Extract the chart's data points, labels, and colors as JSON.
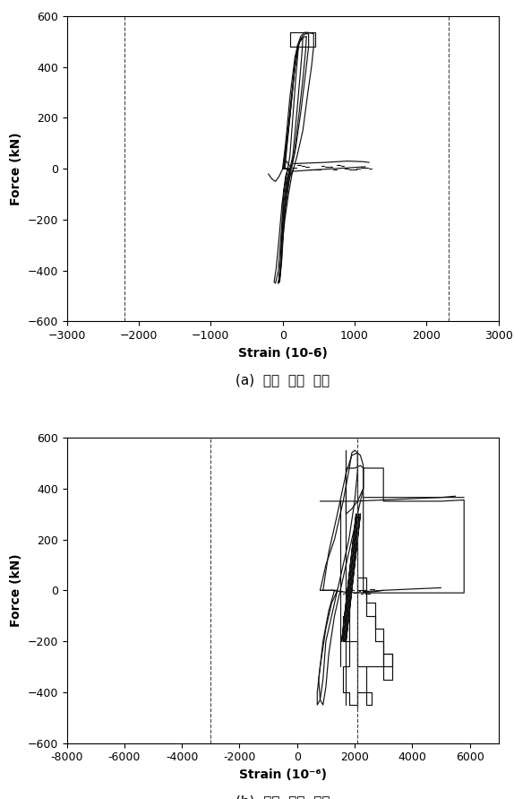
{
  "fig_width": 5.74,
  "fig_height": 8.91,
  "dpi": 100,
  "background_color": "#ffffff",
  "subplot_a": {
    "xlim": [
      -3000,
      3000
    ],
    "ylim": [
      -600,
      600
    ],
    "xticks": [
      -3000,
      -2000,
      -1000,
      0,
      1000,
      2000,
      3000
    ],
    "yticks": [
      -600,
      -400,
      -200,
      0,
      200,
      400,
      600
    ],
    "xlabel": "Strain (10-6)",
    "ylabel": "Force (kN)",
    "vlines": [
      -2200,
      2300
    ],
    "caption": "(a)  좌측  단부  주근"
  },
  "subplot_b": {
    "xlim": [
      -8000,
      7000
    ],
    "ylim": [
      -600,
      600
    ],
    "xticks": [
      -8000,
      -6000,
      -4000,
      -2000,
      0,
      2000,
      4000,
      6000
    ],
    "yticks": [
      -600,
      -400,
      -200,
      0,
      200,
      400,
      600
    ],
    "xlabel": "Strain (10⁻⁶)",
    "ylabel": "Force (kN)",
    "vlines": [
      -3000,
      2100
    ],
    "caption": "(b)  우측  단부  주근"
  },
  "line_color": "#111111",
  "dashed_line_color": "#444444",
  "line_width": 0.85
}
